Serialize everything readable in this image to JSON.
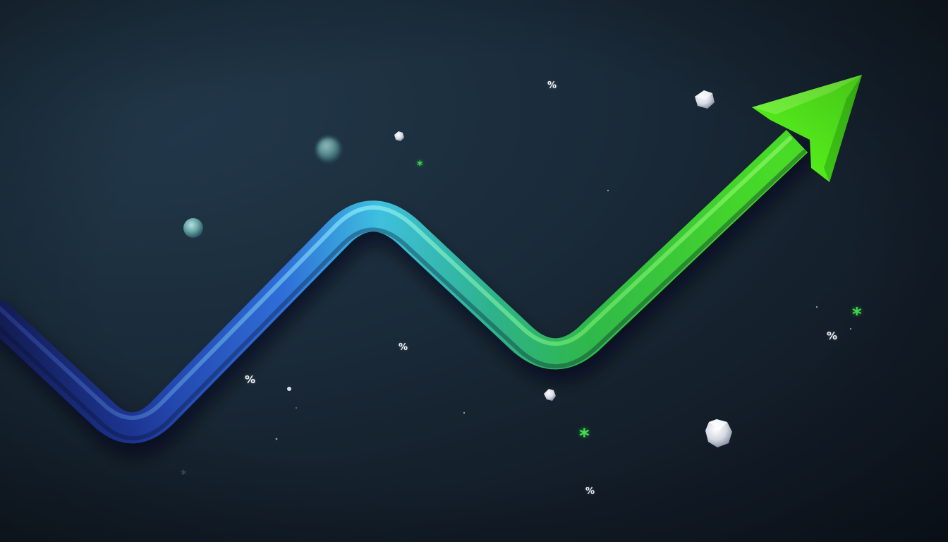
{
  "scene": {
    "description_icon": "trend-up-arrow-icon",
    "colors": {
      "arrow_start": "#1a2e8a",
      "arrow_mid": "#3bb7d6",
      "arrow_end": "#4de61f",
      "accent_green": "#3fe04a",
      "background": "#16222e"
    }
  },
  "symbols": {
    "percent": "%",
    "asterisk": "*"
  }
}
